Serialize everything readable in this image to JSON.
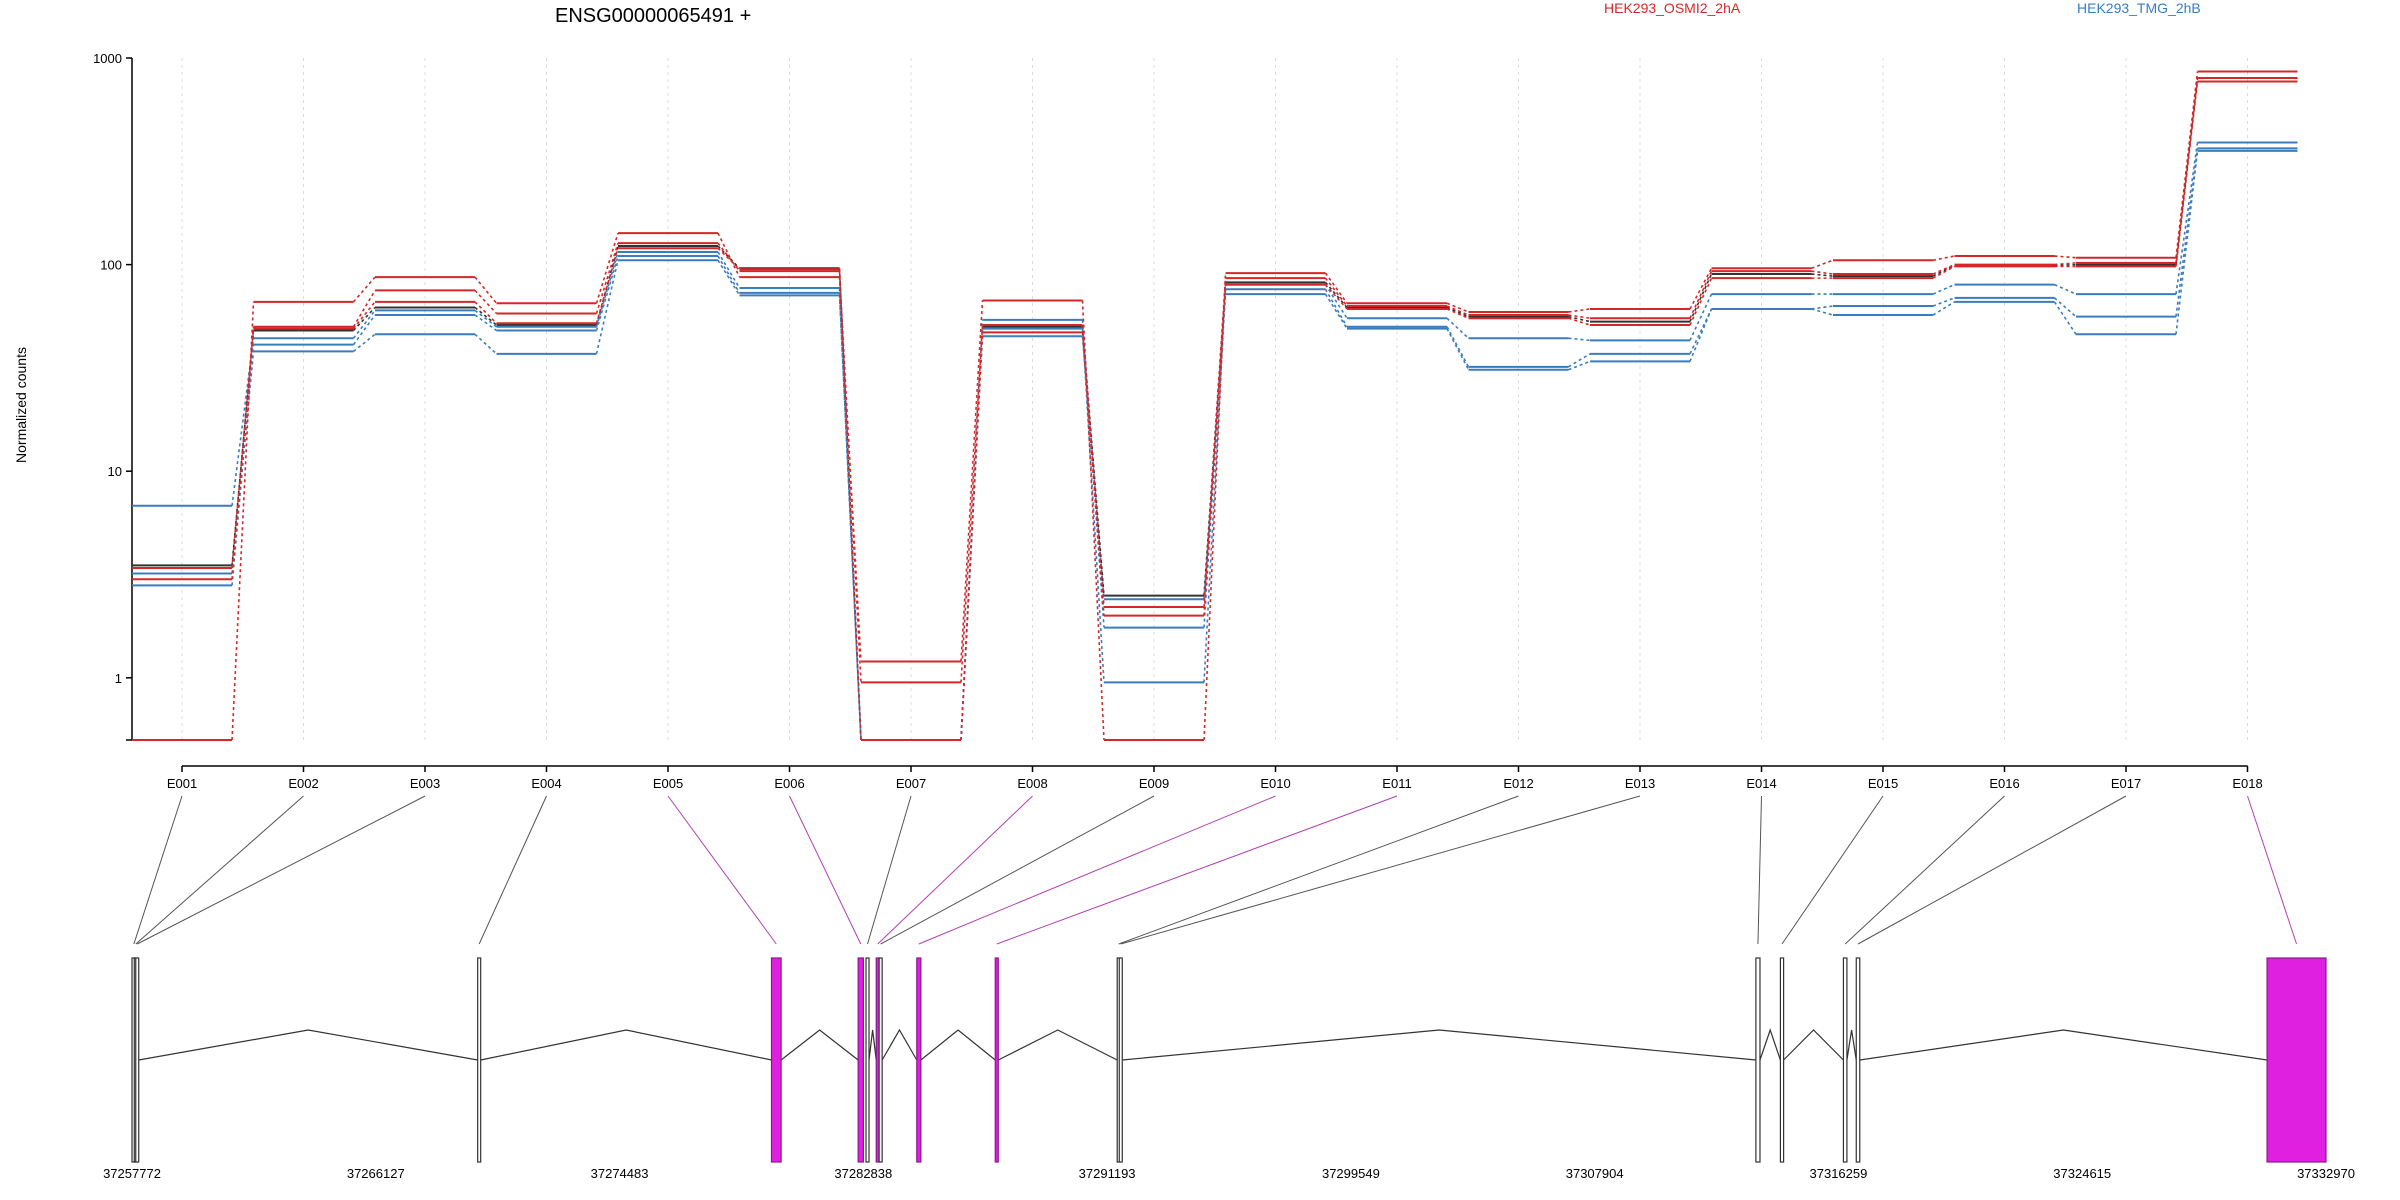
{
  "chart_data": {
    "type": "line",
    "title": "ENSG00000065491 +",
    "xlabel": "",
    "ylabel": "Normalized counts",
    "y_scale": "log",
    "ylim": [
      0.5,
      1000
    ],
    "yticks": [
      1,
      10,
      100,
      1000
    ],
    "ytick_labels": [
      "1",
      "10",
      "100",
      "1000"
    ],
    "grid": true,
    "legend_placement": "top",
    "colors": {
      "red": "#d62728",
      "blue": "#3a7dbf",
      "dark": "#333333",
      "highlight": "#e020e0",
      "grid": "#dcdcdc"
    },
    "categories": [
      "E001",
      "E002",
      "E003",
      "E004",
      "E005",
      "E006",
      "E007",
      "E008",
      "E009",
      "E010",
      "E011",
      "E012",
      "E013",
      "E014",
      "E015",
      "E016",
      "E017",
      "E018"
    ],
    "series": [
      {
        "name": "HEK293_OSMI2_2hA",
        "group": "red",
        "values": [
          0.5,
          66,
          87,
          65,
          142,
          87,
          1.2,
          67,
          0.5,
          91,
          65,
          59,
          61,
          96,
          105,
          110,
          108,
          860
        ]
      },
      {
        "group": "red",
        "values": [
          3.0,
          50,
          75,
          58,
          127,
          93,
          0.95,
          51,
          2.2,
          86,
          63,
          57,
          55,
          93,
          90,
          100,
          102,
          800
        ]
      },
      {
        "group": "red",
        "values": [
          3.4,
          49,
          66,
          52,
          120,
          95,
          0.5,
          47,
          2.0,
          80,
          61,
          55,
          51,
          86,
          86,
          98,
          98,
          770
        ]
      },
      {
        "name": "HEK293_TMG_2hB",
        "group": "blue",
        "values": [
          6.8,
          44,
          60,
          50,
          115,
          77,
          0.5,
          54,
          1.75,
          80,
          55,
          44,
          43,
          72,
          72,
          80,
          72,
          390
        ]
      },
      {
        "group": "blue",
        "values": [
          2.8,
          41,
          57,
          48,
          110,
          73,
          0.5,
          49,
          0.95,
          76,
          50,
          32,
          37,
          61,
          63,
          69,
          56,
          365
        ]
      },
      {
        "group": "blue",
        "values": [
          3.2,
          38,
          46,
          37,
          105,
          71,
          0.5,
          45,
          2.4,
          72,
          49,
          31,
          34,
          61,
          57,
          66,
          46,
          355
        ]
      },
      {
        "group": "dark",
        "values": [
          3.5,
          48,
          62,
          51,
          123,
          96,
          0.5,
          50,
          2.5,
          82,
          62,
          56,
          53,
          90,
          88,
          99,
          100,
          800
        ]
      }
    ],
    "gene_model": {
      "coord_ticks": [
        37257772,
        37266127,
        37274483,
        37282838,
        37291193,
        37299549,
        37307904,
        37316259,
        37324615,
        37332970
      ],
      "coord_tick_labels": [
        "37257772",
        "37266127",
        "37274483",
        "37282838",
        "37291193",
        "37299549",
        "37307904",
        "37316259",
        "37324615",
        "37332970"
      ],
      "exons": [
        {
          "id": "E001",
          "start": 37257772,
          "end": 37257900,
          "highlight": false
        },
        {
          "id": "E002",
          "start": 37257850,
          "end": 37257940,
          "highlight": false
        },
        {
          "id": "E003",
          "start": 37257900,
          "end": 37257990,
          "highlight": false
        },
        {
          "id": "E004",
          "start": 37269620,
          "end": 37269700,
          "highlight": false
        },
        {
          "id": "E005",
          "start": 37279690,
          "end": 37280020,
          "highlight": true
        },
        {
          "id": "E006",
          "start": 37282660,
          "end": 37282840,
          "highlight": true
        },
        {
          "id": "E007",
          "start": 37282930,
          "end": 37283010,
          "highlight": false
        },
        {
          "id": "E008",
          "start": 37283280,
          "end": 37283340,
          "highlight": true
        },
        {
          "id": "E009",
          "start": 37283380,
          "end": 37283440,
          "highlight": false
        },
        {
          "id": "E010",
          "start": 37284670,
          "end": 37284810,
          "highlight": true
        },
        {
          "id": "E011",
          "start": 37287360,
          "end": 37287450,
          "highlight": true
        },
        {
          "id": "E012",
          "start": 37291540,
          "end": 37291610,
          "highlight": false
        },
        {
          "id": "E013",
          "start": 37291610,
          "end": 37291660,
          "highlight": false
        },
        {
          "id": "E014",
          "start": 37313430,
          "end": 37313570,
          "highlight": false
        },
        {
          "id": "E015",
          "start": 37314270,
          "end": 37314380,
          "highlight": false
        },
        {
          "id": "E016",
          "start": 37316430,
          "end": 37316550,
          "highlight": false
        },
        {
          "id": "E017",
          "start": 37316870,
          "end": 37316990,
          "highlight": false
        },
        {
          "id": "E018",
          "start": 37330950,
          "end": 37332970,
          "highlight": true
        }
      ]
    }
  }
}
